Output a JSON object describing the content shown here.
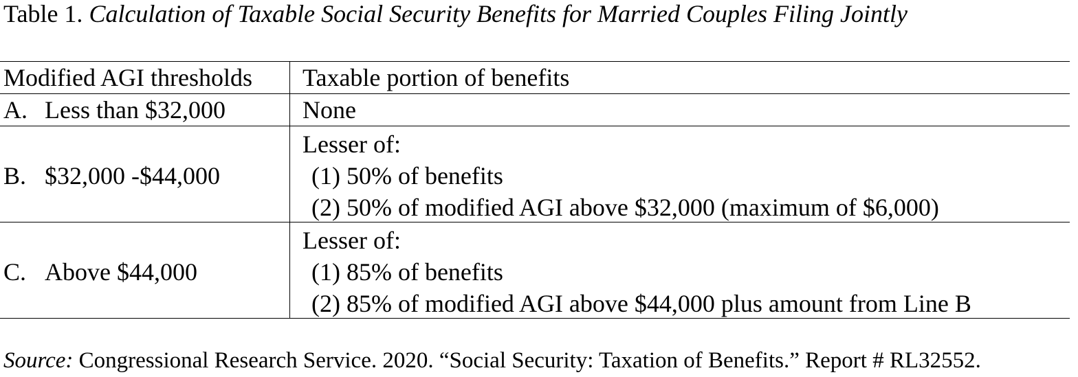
{
  "title": {
    "label": "Table 1.",
    "text": "Calculation of Taxable Social Security Benefits for Married Couples Filing Jointly"
  },
  "table": {
    "header": [
      "Modified AGI thresholds",
      "Taxable portion of benefits"
    ],
    "rows": [
      {
        "letter": "A.",
        "threshold": "Less than $32,000",
        "portion": [
          "None"
        ]
      },
      {
        "letter": "B.",
        "threshold": "$32,000 -$44,000",
        "portion": [
          "Lesser of:",
          "(1) 50% of benefits",
          "(2) 50% of modified AGI above $32,000 (maximum of $6,000)"
        ]
      },
      {
        "letter": "C.",
        "threshold": "Above $44,000",
        "portion": [
          "Lesser of:",
          "(1) 85% of benefits",
          "(2) 85% of modified AGI above $44,000 plus amount from Line B"
        ]
      }
    ]
  },
  "source": {
    "label": "Source:",
    "text": "Congressional Research Service. 2020. “Social Security: Taxation of Benefits.” Report # RL32552."
  }
}
